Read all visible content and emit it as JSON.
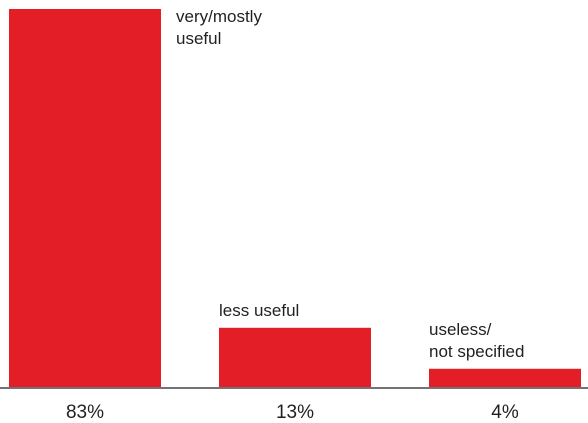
{
  "chart_data": {
    "type": "bar",
    "categories": [
      [
        "very/mostly",
        "useful"
      ],
      [
        "less useful"
      ],
      [
        "useless/",
        "not specified"
      ]
    ],
    "values": [
      83,
      13,
      4
    ],
    "value_labels": [
      "83%",
      "13%",
      "4%"
    ],
    "ylim": [
      0,
      100
    ],
    "grid": false,
    "bar_color": "#e41e26",
    "axis_color": "#231f20"
  }
}
